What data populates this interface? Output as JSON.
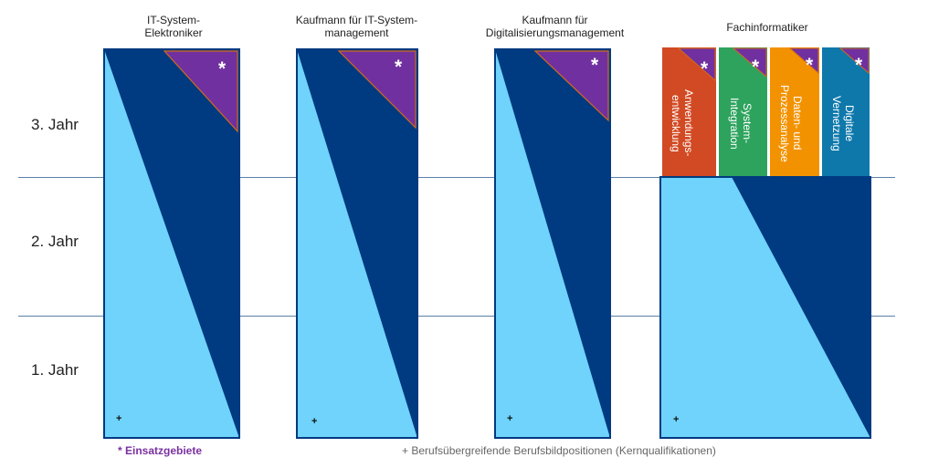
{
  "colors": {
    "dark_blue": "#003a80",
    "light_blue": "#6fd3fb",
    "purple": "#7030a0",
    "orange_border": "#d46a1a",
    "line": "#5b7fa6",
    "spec_red": "#d24a23",
    "spec_green": "#2ea35e",
    "spec_orange": "#f39200",
    "spec_teal": "#0e78ab"
  },
  "years": [
    "3. Jahr",
    "2. Jahr",
    "1. Jahr"
  ],
  "professions": [
    {
      "title": "IT-System-\nElektroniker",
      "star": "*",
      "plus": "+"
    },
    {
      "title": "Kaufmann für IT-System-\nmanagement",
      "star": "*",
      "plus": "+"
    },
    {
      "title": "Kaufmann für\nDigitalisierungsmanagement",
      "star": "*",
      "plus": "+"
    },
    {
      "title": "Fachinformatiker",
      "star": "*",
      "plus": "+"
    }
  ],
  "specializations": [
    {
      "label": "Anwendungs-\nentwicklung",
      "star": "*",
      "color": "#d24a23"
    },
    {
      "label": "System-\nIntegration",
      "star": "*",
      "color": "#2ea35e"
    },
    {
      "label": "Daten- und\nProzessanalyse",
      "star": "*",
      "color": "#f39200"
    },
    {
      "label": "Digitale\nVernetzung",
      "star": "*",
      "color": "#0e78ab"
    }
  ],
  "legend": {
    "einsatz": "* Einsatzgebiete",
    "kern": "+ Berufsübergreifende Berufsbildpositionen (Kernqualifikationen)"
  }
}
